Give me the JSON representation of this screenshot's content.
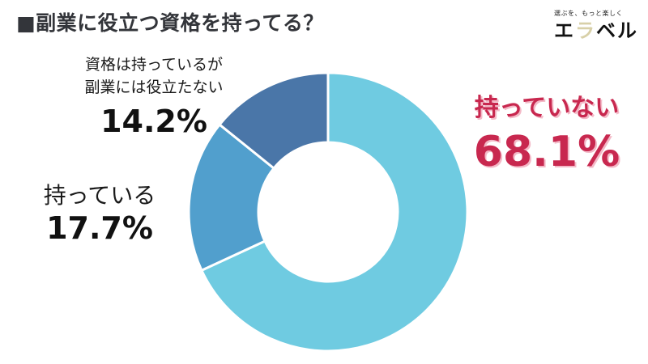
{
  "header": {
    "title": "■副業に役立つ資格を持ってる？"
  },
  "logo": {
    "tagline": "選ぶを、もっと楽しく",
    "chars": [
      "エ",
      "ラ",
      "ベ",
      "ル"
    ],
    "colors": [
      "#111111",
      "#d8d0a8",
      "#111111",
      "#111111"
    ]
  },
  "chart_data": {
    "type": "pie",
    "subtype": "donut",
    "title": "副業に役立つ資格を持ってる？",
    "categories": [
      "持っていない",
      "持っている",
      "資格は持っているが副業には役立たない"
    ],
    "values": [
      68.1,
      17.7,
      14.2
    ],
    "unit": "%",
    "colors": [
      "#6fcbe1",
      "#519fcd",
      "#4a76a8"
    ],
    "start_angle_deg": 0,
    "direction": "clockwise",
    "highlight": "持っていない"
  },
  "labels": {
    "not_have": {
      "name": "持っていない",
      "pct": "68.1%",
      "color": "#c8284f"
    },
    "have": {
      "name": "持っている",
      "pct": "17.7%"
    },
    "have_useless": {
      "line1": "資格は持っているが",
      "line2": "副業には役立たない",
      "pct": "14.2%"
    }
  }
}
